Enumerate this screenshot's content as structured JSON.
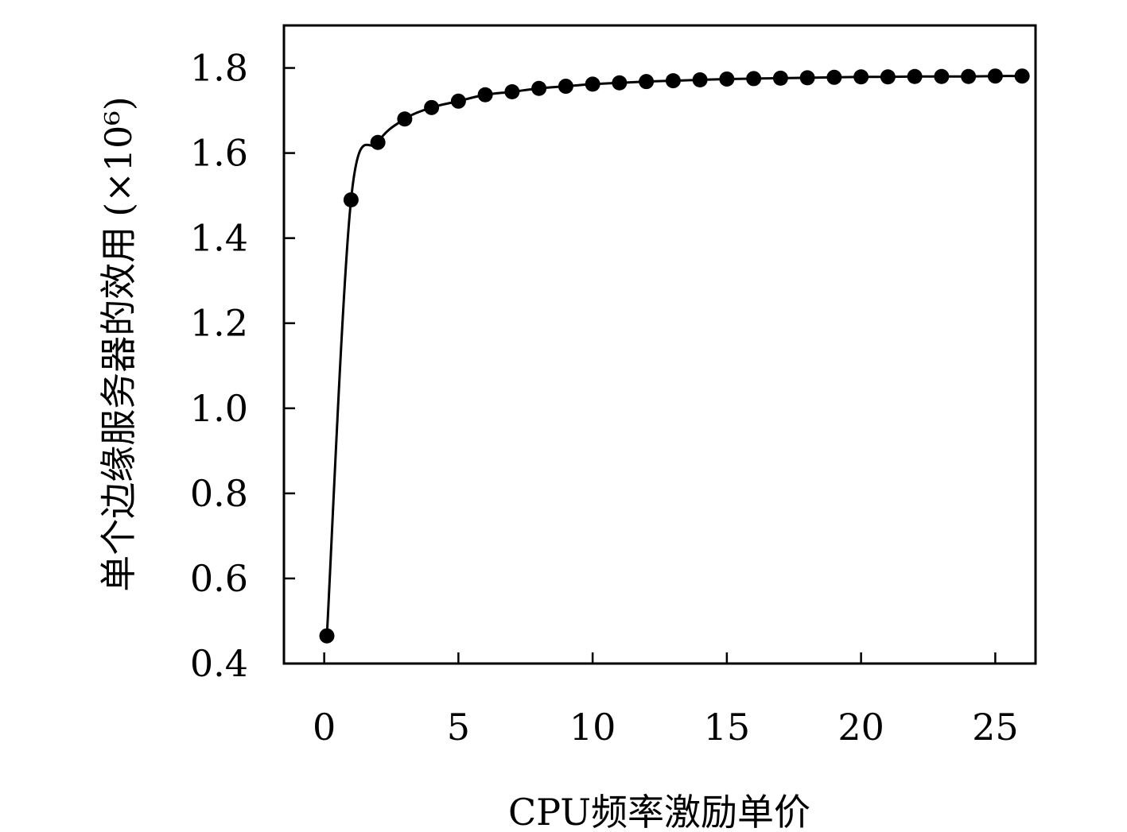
{
  "chart_data": {
    "type": "line",
    "xlabel": "CPU频率激励单价",
    "ylabel": "单个边缘服务器的效用",
    "ylabel_unit": "(×10⁶)",
    "xlim": [
      -1.5,
      26.5
    ],
    "ylim": [
      0.4,
      1.9
    ],
    "xticks": [
      "0",
      "5",
      "10",
      "15",
      "20",
      "25"
    ],
    "yticks": [
      "0.4",
      "0.6",
      "0.8",
      "1.0",
      "1.2",
      "1.4",
      "1.6",
      "1.8"
    ],
    "series": [
      {
        "marker": "circle",
        "color": "#000000",
        "x": [
          0.1,
          1,
          2,
          3,
          4,
          5,
          6,
          7,
          8,
          9,
          10,
          11,
          12,
          13,
          14,
          15,
          16,
          17,
          18,
          19,
          20,
          21,
          22,
          23,
          24,
          25,
          26
        ],
        "y": [
          0.465,
          1.49,
          1.625,
          1.68,
          1.707,
          1.722,
          1.737,
          1.744,
          1.752,
          1.757,
          1.762,
          1.765,
          1.768,
          1.77,
          1.772,
          1.774,
          1.775,
          1.776,
          1.777,
          1.778,
          1.779,
          1.779,
          1.78,
          1.78,
          1.78,
          1.781,
          1.781
        ]
      }
    ]
  }
}
